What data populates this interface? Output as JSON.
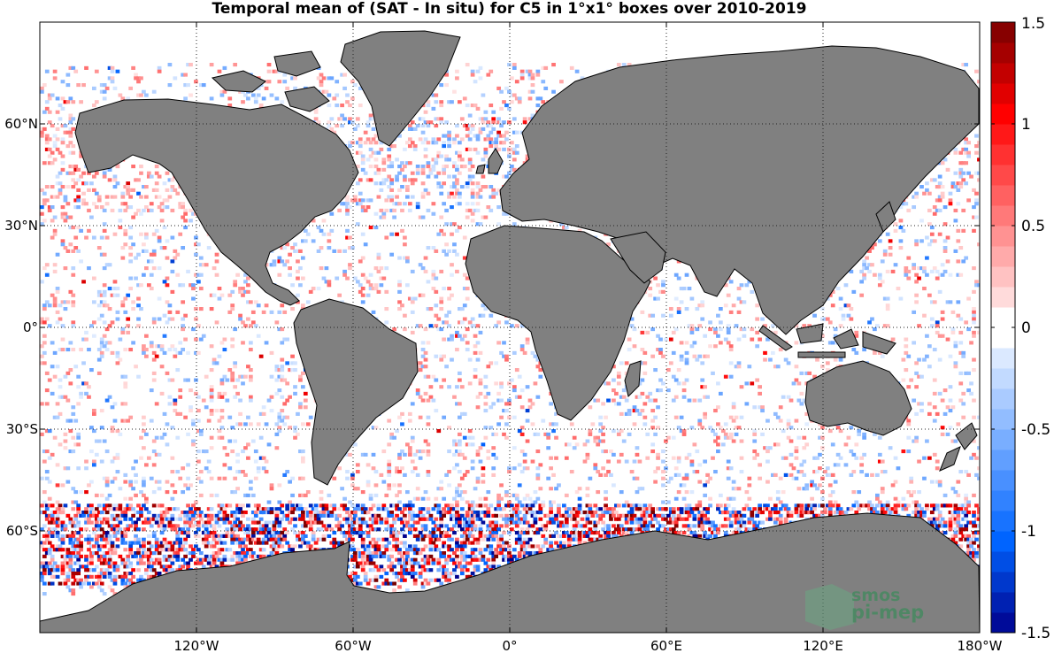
{
  "title": "Temporal mean of (SAT - In situ) for C5 in 1°x1° boxes over 2010-2019",
  "map": {
    "projection": "equirectangular",
    "lon_range": [
      -180,
      180
    ],
    "lat_range": [
      -90,
      90
    ],
    "land_color": "#808080",
    "ocean_color": "#ffffff",
    "grid": "dotted",
    "lat_ticks": [
      {
        "value": 60,
        "label": "60°N"
      },
      {
        "value": 30,
        "label": "30°N"
      },
      {
        "value": 0,
        "label": "0°"
      },
      {
        "value": -30,
        "label": "30°S"
      },
      {
        "value": -60,
        "label": "60°S"
      }
    ],
    "lon_ticks": [
      {
        "value": -120,
        "label": "120°W"
      },
      {
        "value": -60,
        "label": "60°W"
      },
      {
        "value": 0,
        "label": "0°"
      },
      {
        "value": 60,
        "label": "60°E"
      },
      {
        "value": 120,
        "label": "120°E"
      },
      {
        "value": 180,
        "label": "180°W"
      }
    ]
  },
  "colorbar": {
    "min": -1.5,
    "max": 1.5,
    "levels": 30,
    "ticks": [
      {
        "value": 1.5,
        "label": "1.5"
      },
      {
        "value": 1,
        "label": "1"
      },
      {
        "value": 0.5,
        "label": "0.5"
      },
      {
        "value": 0,
        "label": "0"
      },
      {
        "value": -0.5,
        "label": "-0.5"
      },
      {
        "value": -1,
        "label": "-1"
      },
      {
        "value": -1.5,
        "label": "-1.5"
      }
    ]
  },
  "logo": {
    "line1": "smos",
    "line2": "pi-mep"
  }
}
